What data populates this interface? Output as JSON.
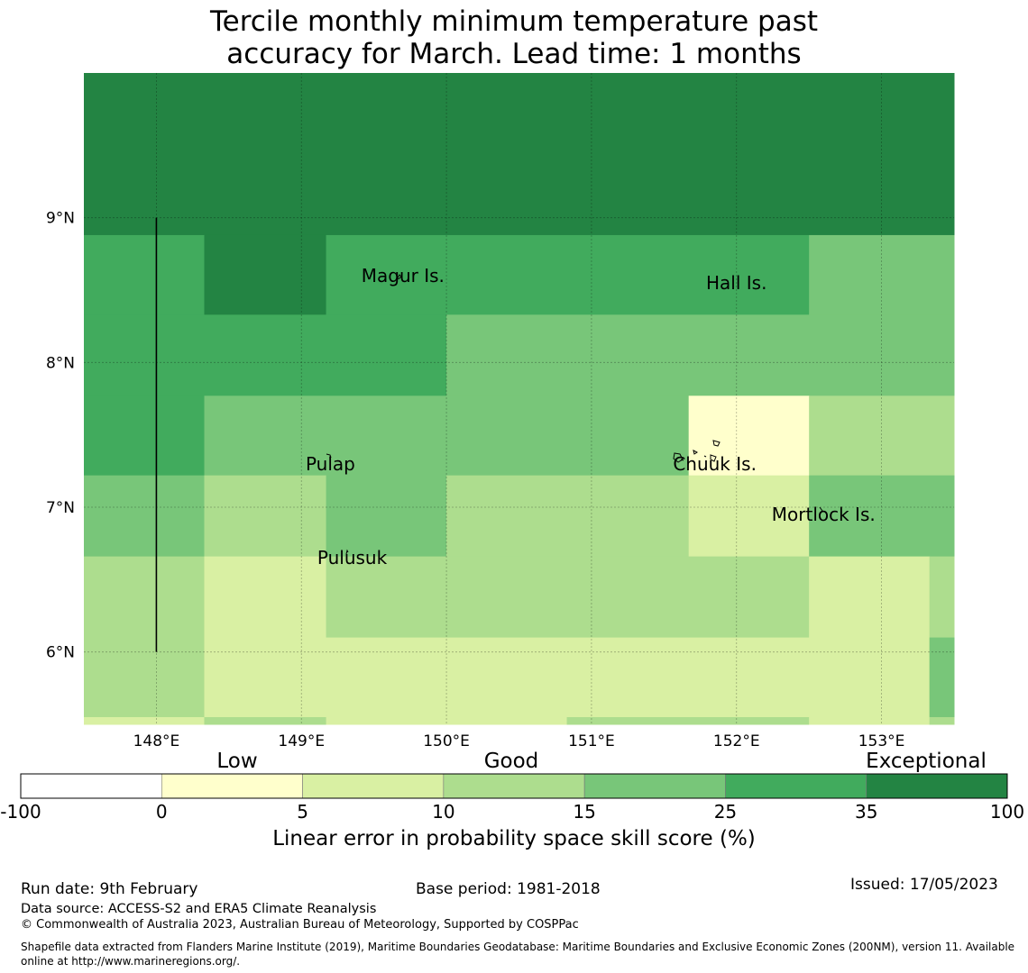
{
  "title": {
    "line1": "Tercile monthly minimum temperature past",
    "line2": "accuracy for March. Lead time: 1 months"
  },
  "map": {
    "lon_range": [
      147.5,
      153.5
    ],
    "lat_range": [
      5.5,
      10.0
    ],
    "lat_ticks": [
      {
        "value": 9,
        "label": "9°N"
      },
      {
        "value": 8,
        "label": "8°N"
      },
      {
        "value": 7,
        "label": "7°N"
      },
      {
        "value": 6,
        "label": "6°N"
      }
    ],
    "lon_ticks": [
      {
        "value": 148,
        "label": "148°E"
      },
      {
        "value": 149,
        "label": "149°E"
      },
      {
        "value": 150,
        "label": "150°E"
      },
      {
        "value": 151,
        "label": "151°E"
      },
      {
        "value": 152,
        "label": "152°E"
      },
      {
        "value": 153,
        "label": "153°E"
      }
    ],
    "place_labels": [
      {
        "name": "Magur Is.",
        "lon": 149.7,
        "lat": 8.6
      },
      {
        "name": "Hall Is.",
        "lon": 152.0,
        "lat": 8.55
      },
      {
        "name": "Pulap",
        "lon": 149.2,
        "lat": 7.3
      },
      {
        "name": "Chuuk Is.",
        "lon": 151.85,
        "lat": 7.3
      },
      {
        "name": "Mortlock Is.",
        "lon": 152.6,
        "lat": 6.95
      },
      {
        "name": "Pulusuk",
        "lon": 149.35,
        "lat": 6.65
      }
    ],
    "skill_cells": [
      {
        "lon": [
          147.5,
          153.5
        ],
        "lat": [
          9.0,
          10.0
        ],
        "cat": 6
      },
      {
        "lon": [
          147.5,
          153.5
        ],
        "lat": [
          8.88,
          9.0
        ],
        "cat": 6
      },
      {
        "lon": [
          147.5,
          148.33
        ],
        "lat": [
          8.33,
          8.88
        ],
        "cat": 5
      },
      {
        "lon": [
          148.33,
          149.17
        ],
        "lat": [
          8.33,
          8.88
        ],
        "cat": 6
      },
      {
        "lon": [
          149.17,
          152.5
        ],
        "lat": [
          8.33,
          8.88
        ],
        "cat": 5
      },
      {
        "lon": [
          152.5,
          153.5
        ],
        "lat": [
          8.33,
          8.88
        ],
        "cat": 4
      },
      {
        "lon": [
          147.5,
          150.0
        ],
        "lat": [
          7.77,
          8.33
        ],
        "cat": 5
      },
      {
        "lon": [
          150.0,
          153.5
        ],
        "lat": [
          7.77,
          8.33
        ],
        "cat": 4
      },
      {
        "lon": [
          147.5,
          148.33
        ],
        "lat": [
          7.22,
          7.77
        ],
        "cat": 5
      },
      {
        "lon": [
          148.33,
          151.67
        ],
        "lat": [
          7.22,
          7.77
        ],
        "cat": 4
      },
      {
        "lon": [
          151.67,
          152.5
        ],
        "lat": [
          7.22,
          7.77
        ],
        "cat": 1
      },
      {
        "lon": [
          152.5,
          153.5
        ],
        "lat": [
          7.22,
          7.77
        ],
        "cat": 3
      },
      {
        "lon": [
          147.5,
          148.33
        ],
        "lat": [
          6.66,
          7.22
        ],
        "cat": 4
      },
      {
        "lon": [
          148.33,
          149.17
        ],
        "lat": [
          6.66,
          7.22
        ],
        "cat": 3
      },
      {
        "lon": [
          149.17,
          150.0
        ],
        "lat": [
          6.66,
          7.22
        ],
        "cat": 4
      },
      {
        "lon": [
          150.0,
          151.67
        ],
        "lat": [
          6.66,
          7.22
        ],
        "cat": 3
      },
      {
        "lon": [
          151.67,
          152.5
        ],
        "lat": [
          6.66,
          7.22
        ],
        "cat": 2
      },
      {
        "lon": [
          152.5,
          153.5
        ],
        "lat": [
          6.66,
          7.22
        ],
        "cat": 4
      },
      {
        "lon": [
          147.5,
          148.33
        ],
        "lat": [
          5.5,
          6.66
        ],
        "cat": 3
      },
      {
        "lon": [
          148.33,
          149.17
        ],
        "lat": [
          6.1,
          6.66
        ],
        "cat": 2
      },
      {
        "lon": [
          149.17,
          152.5
        ],
        "lat": [
          6.1,
          6.66
        ],
        "cat": 3
      },
      {
        "lon": [
          152.5,
          153.33
        ],
        "lat": [
          6.1,
          6.66
        ],
        "cat": 2
      },
      {
        "lon": [
          153.33,
          153.5
        ],
        "lat": [
          6.1,
          6.66
        ],
        "cat": 3
      },
      {
        "lon": [
          148.33,
          153.33
        ],
        "lat": [
          5.55,
          6.1
        ],
        "cat": 2
      },
      {
        "lon": [
          153.33,
          153.5
        ],
        "lat": [
          5.55,
          6.1
        ],
        "cat": 4
      },
      {
        "lon": [
          147.5,
          148.33
        ],
        "lat": [
          5.5,
          5.55
        ],
        "cat": 2
      },
      {
        "lon": [
          148.33,
          149.17
        ],
        "lat": [
          5.5,
          5.55
        ],
        "cat": 3
      },
      {
        "lon": [
          149.17,
          150.83
        ],
        "lat": [
          5.5,
          5.55
        ],
        "cat": 2
      },
      {
        "lon": [
          150.83,
          152.5
        ],
        "lat": [
          5.5,
          5.55
        ],
        "cat": 3
      },
      {
        "lon": [
          152.5,
          153.33
        ],
        "lat": [
          5.5,
          5.55
        ],
        "cat": 2
      },
      {
        "lon": [
          153.33,
          153.5
        ],
        "lat": [
          5.5,
          5.55
        ],
        "cat": 3
      }
    ],
    "boundary_line": {
      "lon": 148.0,
      "lat_from": 6.0,
      "lat_to": 9.0
    }
  },
  "colorbar": {
    "categories": [
      "Low",
      "Good",
      "Exceptional"
    ],
    "ticks": [
      "-100",
      "0",
      "5",
      "10",
      "15",
      "25",
      "35",
      "100"
    ],
    "colors": [
      "#ffffff",
      "#ffffcc",
      "#d9f0a3",
      "#addd8e",
      "#78c679",
      "#41ab5d",
      "#238443"
    ],
    "title": "Linear error in probability space skill score (%)"
  },
  "footer": {
    "run_date": "Run date: 9th February",
    "base_period": "Base period: 1981-2018",
    "issued": "Issued: 17/05/2023",
    "data_source": "Data source: ACCESS-S2 and ERA5 Climate Reanalysis",
    "copyright": "© Commonwealth of Australia 2023, Australian Bureau of Meteorology, Supported by COSPPac",
    "shapefile": "Shapefile data extracted from Flanders Marine Institute (2019), Maritime Boundaries Geodatabase: Maritime Boundaries and Exclusive Economic Zones (200NM), version 11. Available online at http://www.marineregions.org/."
  }
}
